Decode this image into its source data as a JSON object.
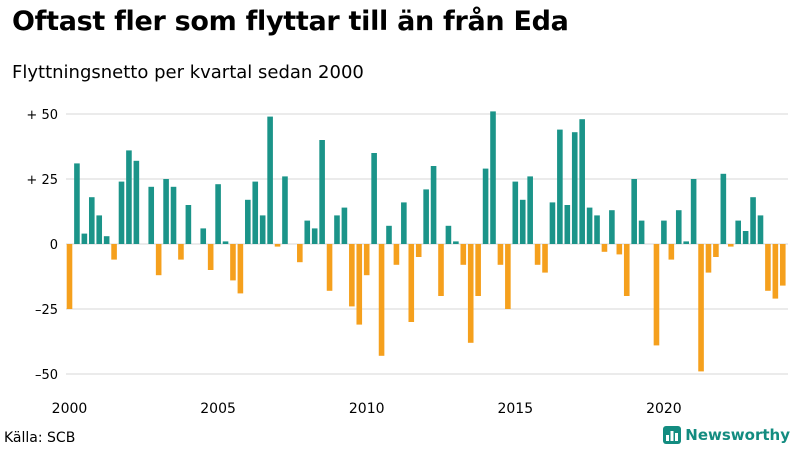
{
  "title": "Oftast fler som flyttar till än från Eda",
  "subtitle": "Flyttningsnetto per kvartal sedan 2000",
  "source": "Källa: SCB",
  "brand": {
    "name": "Newsworthy",
    "icon": "bar-chart-icon"
  },
  "colors": {
    "positive": "#1b9489",
    "negative": "#f5a01d",
    "grid": "#d7d7d7",
    "brand": "#138c80"
  },
  "chart_data": {
    "type": "bar",
    "title": "",
    "xlabel": "",
    "ylabel": "",
    "x_start": "2000 Q1",
    "ylim": [
      -55,
      55
    ],
    "yticks": [
      {
        "value": 50,
        "label": "+ 50"
      },
      {
        "value": 25,
        "label": "+ 25"
      },
      {
        "value": 0,
        "label": "0"
      },
      {
        "value": -25,
        "label": "–25"
      },
      {
        "value": -50,
        "label": "–50"
      }
    ],
    "xticks": [
      "2000",
      "2005",
      "2010",
      "2015",
      "2020"
    ],
    "grid": true,
    "legend": "none",
    "values": [
      -25,
      31,
      4,
      18,
      11,
      3,
      -6,
      24,
      36,
      32,
      0,
      22,
      -12,
      25,
      22,
      -6,
      15,
      0,
      6,
      -10,
      23,
      1,
      -14,
      -19,
      17,
      24,
      11,
      49,
      -1,
      26,
      0,
      -7,
      9,
      6,
      40,
      -18,
      11,
      14,
      -24,
      -31,
      -12,
      35,
      -43,
      7,
      -8,
      16,
      -30,
      -5,
      21,
      30,
      -20,
      7,
      1,
      -8,
      -38,
      -20,
      29,
      51,
      -8,
      -25,
      24,
      17,
      26,
      -8,
      -11,
      16,
      44,
      15,
      43,
      48,
      14,
      11,
      -3,
      13,
      -4,
      -20,
      25,
      9,
      0,
      -39,
      9,
      -6,
      13,
      1,
      25,
      -49,
      -11,
      -5,
      27,
      -1,
      9,
      5,
      18,
      11,
      -18,
      -21,
      -16
    ]
  }
}
